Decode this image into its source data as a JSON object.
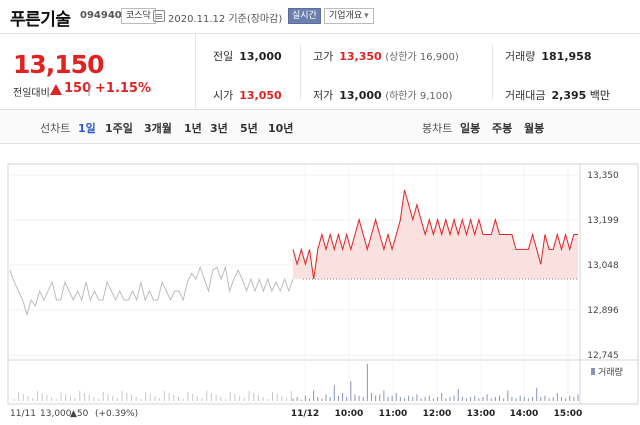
{
  "header": {
    "name": "푸른기술",
    "code": "094940",
    "market": "코스닥",
    "base_date": "2020.11.12 기준(장마감)",
    "realtime_label": "실시간",
    "overview_label": "기업개요"
  },
  "quote": {
    "price": "13,150",
    "change_label": "전일대비",
    "change": "150",
    "change_percent": "+1.15%",
    "direction": "up",
    "prev_close_label": "전일",
    "prev_close": "13,000",
    "high_label": "고가",
    "high": "13,350",
    "upper_limit": "(상한가 16,900)",
    "volume_label": "거래량",
    "volume": "181,958",
    "open_label": "시가",
    "open": "13,050",
    "low_label": "저가",
    "low": "13,000",
    "lower_limit": "(하한가 9,100)",
    "amount_label": "거래대금",
    "amount": "2,395",
    "amount_unit": "백만"
  },
  "nav": {
    "line_label": "선차트",
    "periods": [
      "1일",
      "1주일",
      "3개월",
      "1년",
      "3년",
      "5년",
      "10년"
    ],
    "active_period": "1일",
    "candle_label": "봉차트",
    "candles": [
      "일봉",
      "주봉",
      "월봉"
    ]
  },
  "colors": {
    "up": "#e22222",
    "accent": "#2a59c8",
    "prev_day_line": "#bdbdbd"
  },
  "chart_data": {
    "type": "line",
    "y_ticks": [
      "13,350",
      "13,199",
      "13,048",
      "12,896",
      "12,745"
    ],
    "ylim": [
      12745,
      13350
    ],
    "x_ticks": [
      "11/12",
      "10:00",
      "11:00",
      "12:00",
      "13:00",
      "14:00",
      "15:00"
    ],
    "baseline": 13000,
    "prev_day": {
      "date": "11/11",
      "close": "13,000",
      "change": "▲50",
      "change_pct": "(+0.39%)",
      "values": [
        13030,
        12990,
        12960,
        12930,
        12880,
        12930,
        12910,
        12960,
        12930,
        12960,
        12990,
        12930,
        12930,
        12990,
        12960,
        12930,
        12960,
        12930,
        12990,
        12930,
        12960,
        12930,
        12930,
        12990,
        12960,
        12930,
        12960,
        12930,
        12930,
        12960,
        12930,
        12990,
        12930,
        12960,
        12930,
        12930,
        12990,
        12960,
        12930,
        12960,
        12960,
        12930,
        12990,
        13020,
        13000,
        13040,
        13000,
        12960,
        13030,
        13040,
        13000,
        13040,
        12960,
        13000,
        13030,
        13000,
        12960,
        13000,
        12960,
        13000,
        12960,
        13000,
        12960,
        12990,
        12960,
        13000,
        12960,
        13000
      ]
    },
    "today": {
      "name": "11/12",
      "values": [
        13100,
        13050,
        13100,
        13050,
        13100,
        13000,
        13100,
        13150,
        13100,
        13150,
        13100,
        13150,
        13100,
        13150,
        13100,
        13150,
        13200,
        13150,
        13100,
        13150,
        13200,
        13150,
        13100,
        13150,
        13100,
        13150,
        13200,
        13300,
        13250,
        13200,
        13250,
        13200,
        13150,
        13200,
        13150,
        13200,
        13150,
        13200,
        13150,
        13200,
        13150,
        13200,
        13150,
        13200,
        13150,
        13200,
        13150,
        13150,
        13150,
        13200,
        13150,
        13150,
        13150,
        13150,
        13100,
        13100,
        13100,
        13100,
        13150,
        13100,
        13050,
        13150,
        13100,
        13100,
        13150,
        13100,
        13150,
        13100,
        13150,
        13150
      ]
    },
    "volume_legend": "거래량",
    "volume": [
      2,
      3,
      1,
      4,
      2,
      8,
      3,
      2,
      5,
      3,
      12,
      4,
      6,
      3,
      15,
      5,
      4,
      3,
      28,
      6,
      4,
      5,
      8,
      3,
      4,
      6,
      3,
      2,
      4,
      3,
      5,
      2,
      3,
      4,
      2,
      3,
      6,
      2,
      3,
      4,
      9,
      3,
      2,
      3,
      4,
      2,
      3,
      5,
      2,
      3,
      4,
      2,
      8,
      3,
      2,
      4,
      3,
      2,
      3,
      10,
      3,
      4,
      2,
      3,
      6,
      3,
      2,
      4,
      3,
      5
    ]
  }
}
